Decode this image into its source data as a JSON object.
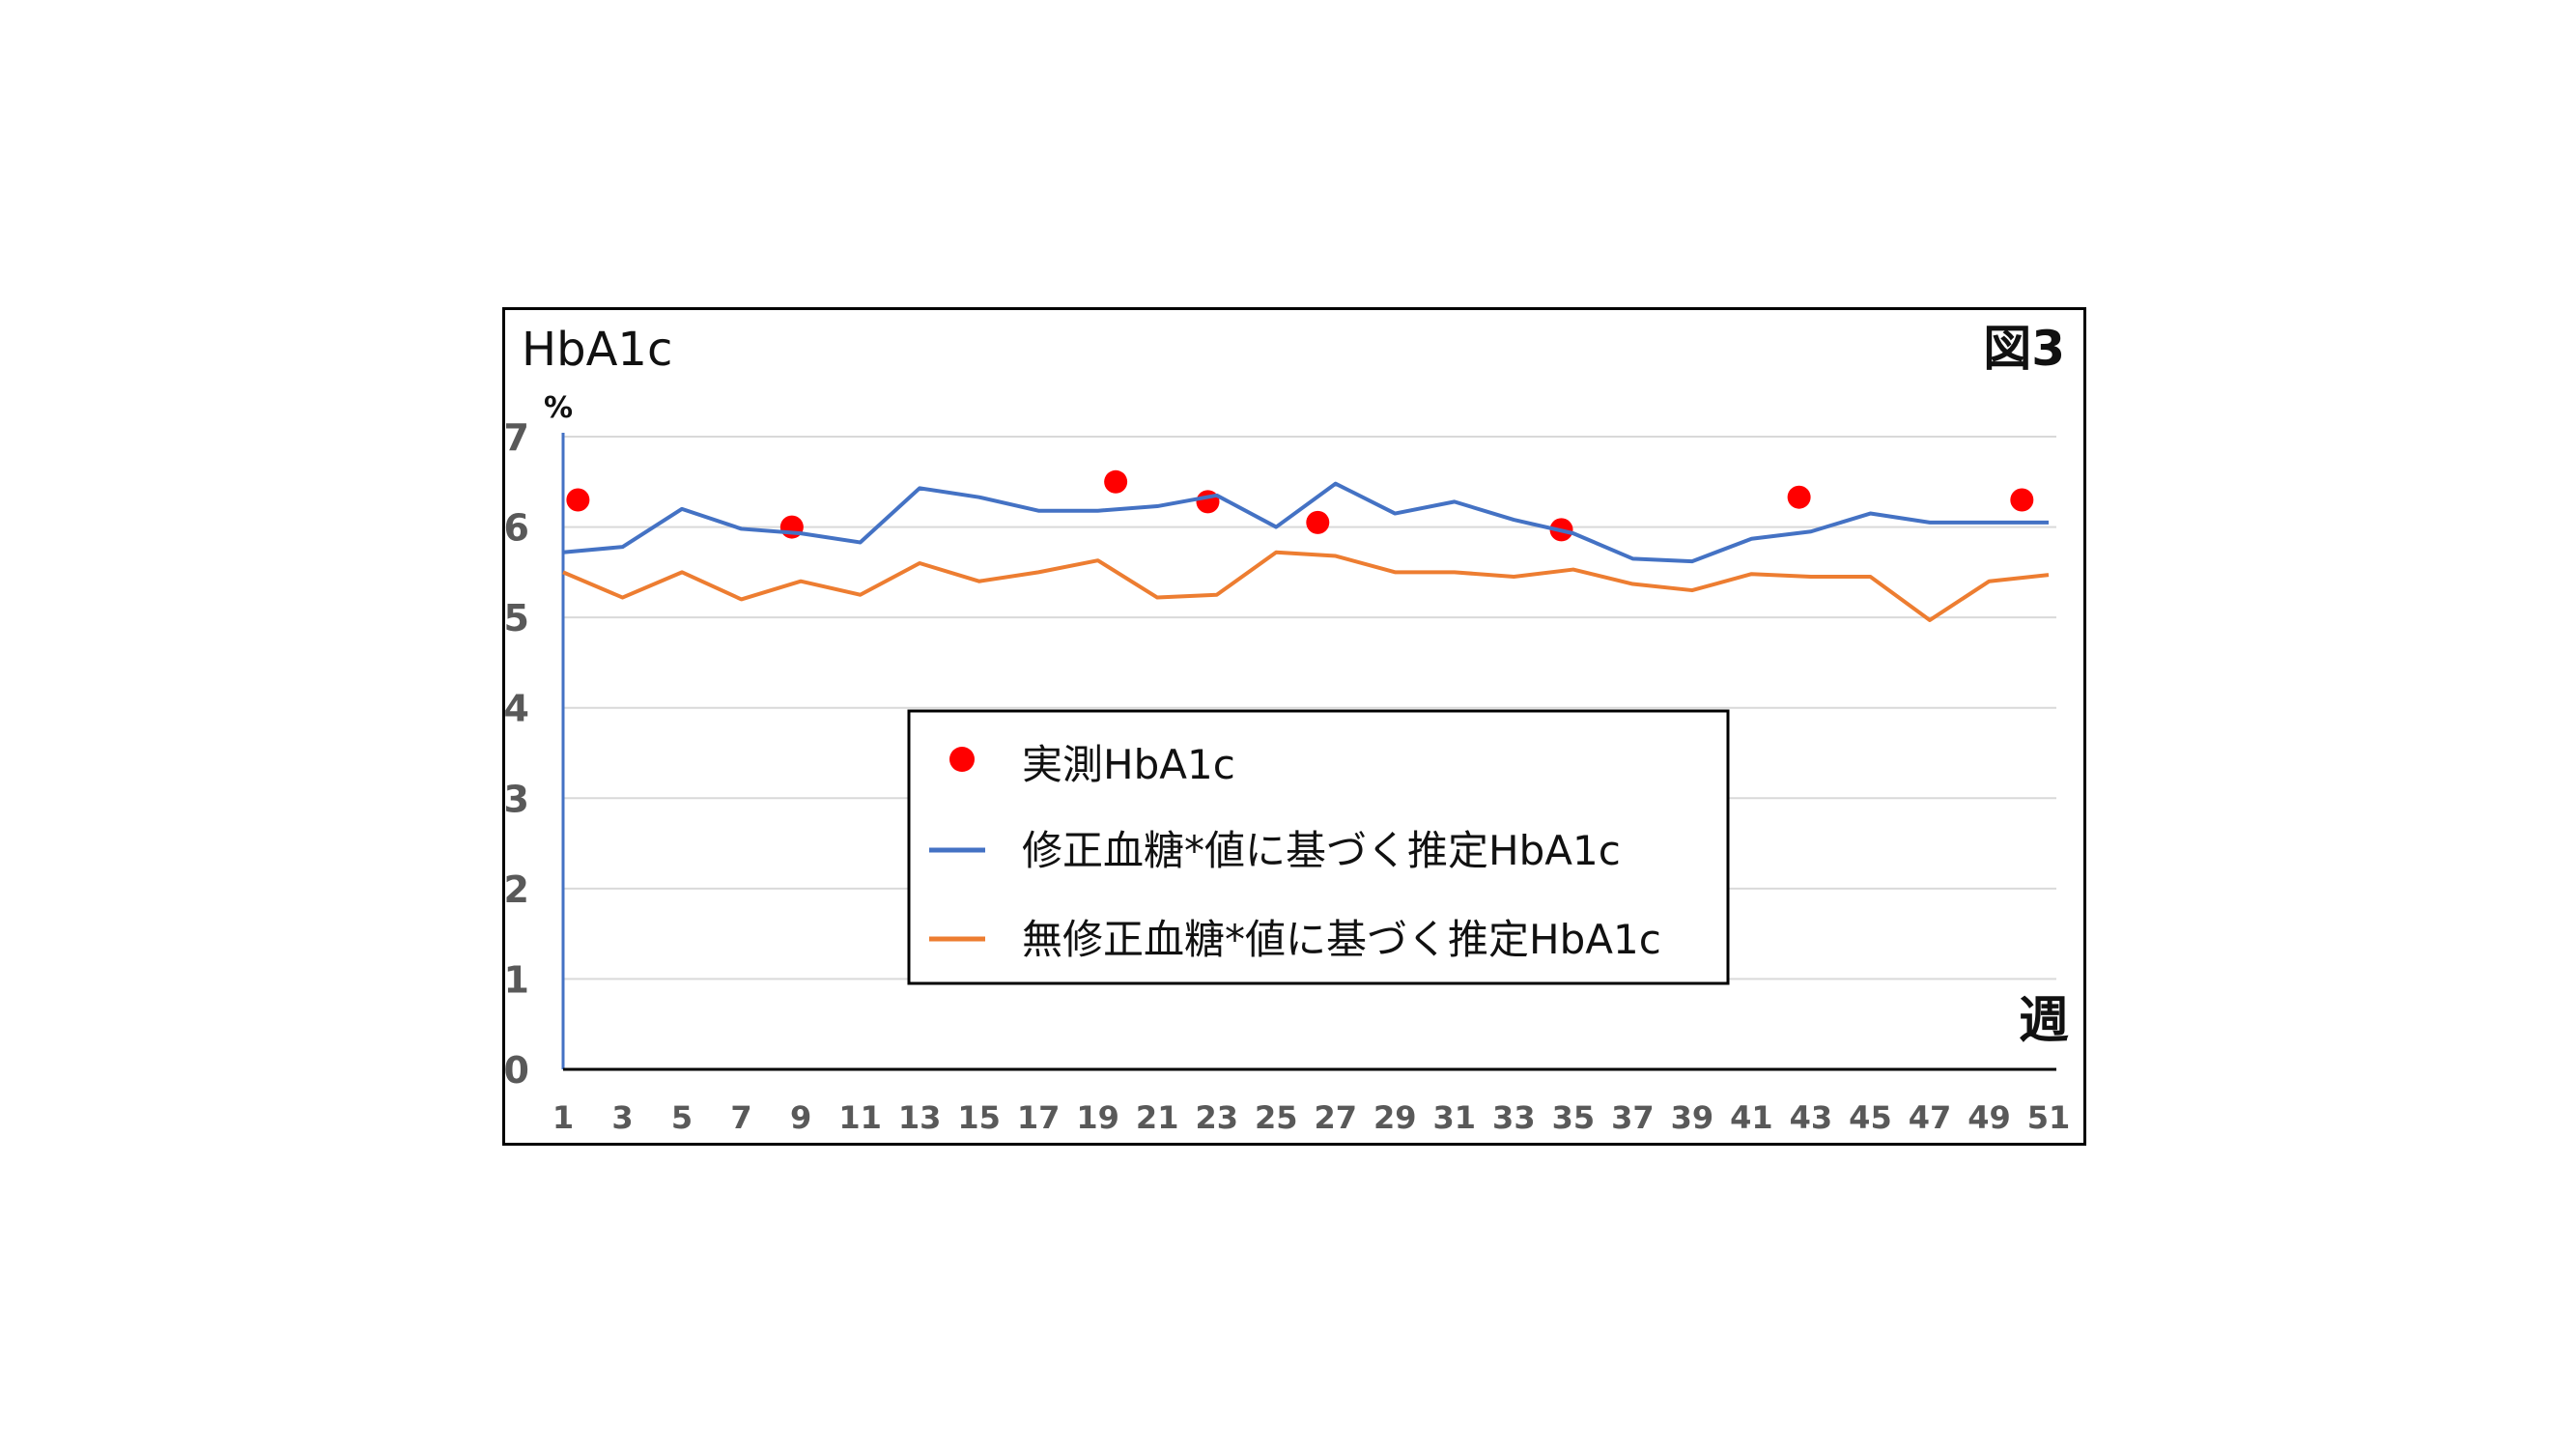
{
  "chart_data": {
    "type": "line",
    "title": "HbA1c",
    "figure_label": "図3",
    "ylabel": "%",
    "xlabel": "週",
    "ylim": [
      0,
      7
    ],
    "yticks": [
      0,
      1,
      2,
      3,
      4,
      5,
      6,
      7
    ],
    "xlim": [
      1,
      51
    ],
    "xticks": [
      1,
      3,
      5,
      7,
      9,
      11,
      13,
      15,
      17,
      19,
      21,
      23,
      25,
      27,
      29,
      31,
      33,
      35,
      37,
      39,
      41,
      43,
      45,
      47,
      49,
      51
    ],
    "grid": true,
    "legend_placement": "center",
    "series": [
      {
        "name": "実測HbA1c",
        "kind": "scatter",
        "color": "#ff0000",
        "x": [
          1.5,
          8.7,
          19.6,
          22.7,
          26.4,
          34.6,
          42.6,
          50.1
        ],
        "y": [
          6.3,
          6.0,
          6.5,
          6.28,
          6.05,
          5.97,
          6.33,
          6.3
        ]
      },
      {
        "name": "修正血糖*値に基づく推定HbA1c",
        "kind": "line",
        "color": "#4472c4",
        "x": [
          1,
          3,
          5,
          7,
          9,
          11,
          13,
          15,
          17,
          19,
          21,
          23,
          25,
          27,
          29,
          31,
          33,
          35,
          37,
          39,
          41,
          43,
          45,
          47,
          49,
          51
        ],
        "y": [
          5.72,
          5.78,
          6.2,
          5.98,
          5.93,
          5.83,
          6.43,
          6.33,
          6.18,
          6.18,
          6.23,
          6.35,
          6.0,
          6.48,
          6.15,
          6.28,
          6.08,
          5.93,
          5.65,
          5.62,
          5.87,
          5.95,
          6.15,
          6.05,
          6.05,
          6.05
        ]
      },
      {
        "name": "無修正血糖*値に基づく推定HbA1c",
        "kind": "line",
        "color": "#ed7d31",
        "x": [
          1,
          3,
          5,
          7,
          9,
          11,
          13,
          15,
          17,
          19,
          21,
          23,
          25,
          27,
          29,
          31,
          33,
          35,
          37,
          39,
          41,
          43,
          45,
          47,
          49,
          51
        ],
        "y": [
          5.5,
          5.22,
          5.5,
          5.2,
          5.4,
          5.25,
          5.6,
          5.4,
          5.5,
          5.63,
          5.22,
          5.25,
          5.72,
          5.68,
          5.5,
          5.5,
          5.45,
          5.53,
          5.37,
          5.3,
          5.48,
          5.45,
          5.45,
          4.97,
          5.4,
          5.47
        ]
      }
    ]
  }
}
